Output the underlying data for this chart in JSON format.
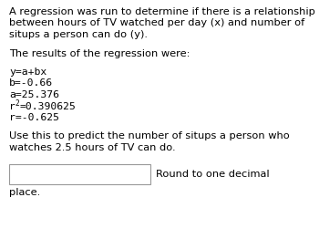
{
  "bg_color": "#ffffff",
  "text_color": "#000000",
  "paragraph1_l1": "A regression was run to determine if there is a relationship",
  "paragraph1_l2": "between hours of TV watched per day (x) and number of",
  "paragraph1_l3": "situps a person can do (y).",
  "paragraph2": "The results of the regression were:",
  "line1": "y=a+bx",
  "line2": "b=-0.66",
  "line3": "a=25.376",
  "line4_base": "r",
  "line4_exp": "2",
  "line4_rest": "=0.390625",
  "line5": "r=-0.625",
  "paragraph3_l1": "Use this to predict the number of situps a person who",
  "paragraph3_l2": "watches 2.5 hours of TV can do.",
  "box_label": "Round to one decimal",
  "footer": "place.",
  "main_fontsize": 8.2,
  "mono_fontsize": 8.2
}
